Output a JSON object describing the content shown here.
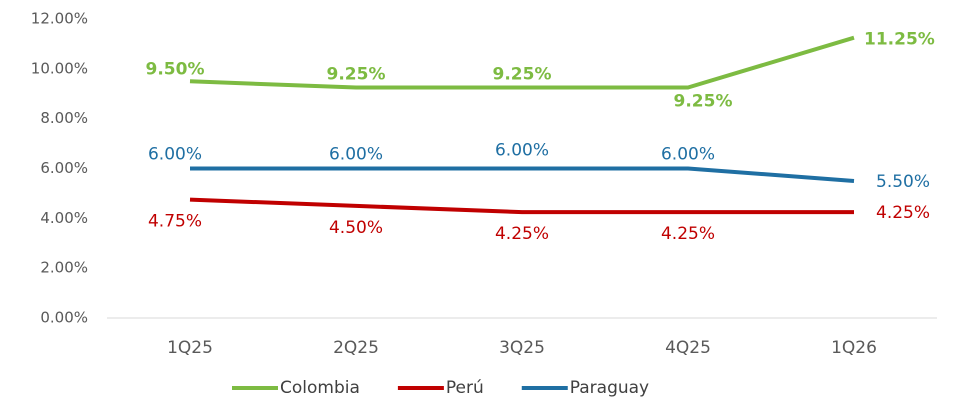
{
  "chart_data": {
    "type": "line",
    "categories": [
      "1Q25",
      "2Q25",
      "3Q25",
      "4Q25",
      "1Q26"
    ],
    "series": [
      {
        "name": "Colombia",
        "color": "#7dbb42",
        "values": [
          9.5,
          9.25,
          9.25,
          9.25,
          11.25
        ],
        "value_labels": [
          "9.50%",
          "9.25%",
          "9.25%",
          "9.25%",
          "11.25%"
        ]
      },
      {
        "name": "Perú",
        "color": "#c00000",
        "values": [
          4.75,
          4.5,
          4.25,
          4.25,
          4.25
        ],
        "value_labels": [
          "4.75%",
          "4.50%",
          "4.25%",
          "4.25%",
          "4.25%"
        ]
      },
      {
        "name": "Paraguay",
        "color": "#1f6fa3",
        "values": [
          6.0,
          6.0,
          6.0,
          6.0,
          5.5
        ],
        "value_labels": [
          "6.00%",
          "6.00%",
          "6.00%",
          "6.00%",
          "5.50%"
        ]
      }
    ],
    "ylim": [
      0,
      12
    ],
    "yticks": [
      {
        "value": 0,
        "label": "0.00%"
      },
      {
        "value": 2,
        "label": "2.00%"
      },
      {
        "value": 4,
        "label": "4.00%"
      },
      {
        "value": 6,
        "label": "6.00%"
      },
      {
        "value": 8,
        "label": "8.00%"
      },
      {
        "value": 10,
        "label": "10.00%"
      },
      {
        "value": 12,
        "label": "12.00%"
      }
    ],
    "grid": false,
    "legend": "bottom"
  }
}
